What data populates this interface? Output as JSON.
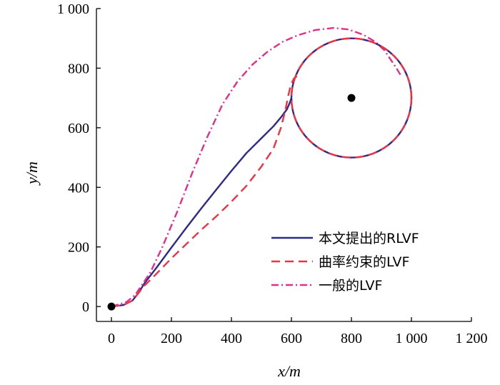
{
  "chart_data": {
    "type": "line",
    "xlabel": "x/m",
    "ylabel": "y/m",
    "xlim": [
      -50,
      1200
    ],
    "ylim": [
      -50,
      1000
    ],
    "x_ticks": [
      0,
      200,
      400,
      600,
      800,
      1000,
      1200
    ],
    "x_tick_labels": [
      "0",
      "200",
      "400",
      "600",
      "800",
      "1 000",
      "1 200"
    ],
    "y_ticks": [
      0,
      200,
      400,
      600,
      800,
      1000
    ],
    "y_tick_labels": [
      "0",
      "200",
      "400",
      "600",
      "800",
      "1 000"
    ],
    "grid": false,
    "legend_position": "bottom-right",
    "series": [
      {
        "name": "本文提出的RLVF",
        "color": "#2e2a8a",
        "dash": "solid",
        "x": [
          0,
          40,
          70,
          90,
          110,
          150,
          200,
          250,
          300,
          350,
          400,
          450,
          500,
          540,
          565,
          585,
          595,
          600
        ],
        "y": [
          0,
          5,
          20,
          45,
          78,
          130,
          198,
          265,
          330,
          393,
          455,
          515,
          565,
          605,
          635,
          662,
          685,
          700
        ]
      },
      {
        "name": "曲率约束的LVF",
        "color": "#ee3344",
        "dash": "dashed",
        "x": [
          0,
          40,
          70,
          90,
          110,
          150,
          200,
          250,
          300,
          350,
          400,
          450,
          500,
          540,
          565,
          580,
          590,
          598,
          608,
          625
        ],
        "y": [
          0,
          5,
          20,
          45,
          70,
          110,
          162,
          210,
          258,
          303,
          352,
          405,
          470,
          530,
          600,
          660,
          710,
          745,
          765,
          778
        ]
      },
      {
        "name": "一般的LVF",
        "color": "#e0308a",
        "dash": "dashdot",
        "x": [
          0,
          50,
          80,
          100,
          130,
          170,
          220,
          270,
          320,
          370,
          420,
          470,
          520,
          570,
          620,
          680,
          740,
          790,
          840,
          880,
          910,
          930,
          950,
          965
        ],
        "y": [
          0,
          15,
          40,
          70,
          115,
          200,
          320,
          450,
          570,
          678,
          755,
          812,
          855,
          888,
          910,
          928,
          935,
          930,
          912,
          888,
          860,
          830,
          800,
          775
        ]
      }
    ],
    "circle": {
      "center": [
        800,
        700
      ],
      "radius": 200
    },
    "markers": [
      {
        "x": 0,
        "y": 0
      },
      {
        "x": 800,
        "y": 700
      }
    ]
  }
}
